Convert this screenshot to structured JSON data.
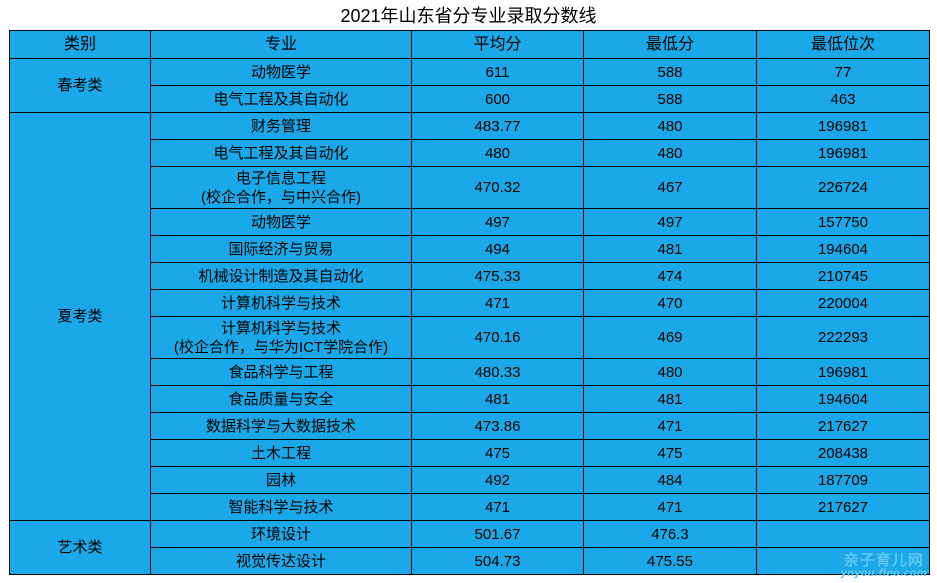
{
  "title": "2021年山东省分专业录取分数线",
  "headers": [
    "类别",
    "专业",
    "平均分",
    "最低分",
    "最低位次"
  ],
  "groups": [
    {
      "category": "春考类",
      "rows": [
        {
          "major": [
            "动物医学"
          ],
          "avg": "611",
          "min": "588",
          "rank": "77"
        },
        {
          "major": [
            "电气工程及其自动化"
          ],
          "avg": "600",
          "min": "588",
          "rank": "463"
        }
      ]
    },
    {
      "category": "夏考类",
      "rows": [
        {
          "major": [
            "财务管理"
          ],
          "avg": "483.77",
          "min": "480",
          "rank": "196981"
        },
        {
          "major": [
            "电气工程及其自动化"
          ],
          "avg": "480",
          "min": "480",
          "rank": "196981"
        },
        {
          "major": [
            "电子信息工程",
            "(校企合作，与中兴合作)"
          ],
          "avg": "470.32",
          "min": "467",
          "rank": "226724"
        },
        {
          "major": [
            "动物医学"
          ],
          "avg": "497",
          "min": "497",
          "rank": "157750"
        },
        {
          "major": [
            "国际经济与贸易"
          ],
          "avg": "494",
          "min": "481",
          "rank": "194604"
        },
        {
          "major": [
            "机械设计制造及其自动化"
          ],
          "avg": "475.33",
          "min": "474",
          "rank": "210745"
        },
        {
          "major": [
            "计算机科学与技术"
          ],
          "avg": "471",
          "min": "470",
          "rank": "220004"
        },
        {
          "major": [
            "计算机科学与技术",
            "(校企合作，与华为ICT学院合作)"
          ],
          "avg": "470.16",
          "min": "469",
          "rank": "222293"
        },
        {
          "major": [
            "食品科学与工程"
          ],
          "avg": "480.33",
          "min": "480",
          "rank": "196981"
        },
        {
          "major": [
            "食品质量与安全"
          ],
          "avg": "481",
          "min": "481",
          "rank": "194604"
        },
        {
          "major": [
            "数据科学与大数据技术"
          ],
          "avg": "473.86",
          "min": "471",
          "rank": "217627"
        },
        {
          "major": [
            "土木工程"
          ],
          "avg": "475",
          "min": "475",
          "rank": "208438"
        },
        {
          "major": [
            "园林"
          ],
          "avg": "492",
          "min": "484",
          "rank": "187709"
        },
        {
          "major": [
            "智能科学与技术"
          ],
          "avg": "471",
          "min": "471",
          "rank": "217627"
        }
      ]
    },
    {
      "category": "艺术类",
      "rows": [
        {
          "major": [
            "环境设计"
          ],
          "avg": "501.67",
          "min": "476.3",
          "rank": ""
        },
        {
          "major": [
            "视觉传达设计"
          ],
          "avg": "504.73",
          "min": "475.55",
          "rank": ""
        }
      ]
    }
  ],
  "watermark": {
    "name": "亲子育儿网",
    "url": "ynyou.fleo.com"
  },
  "colors": {
    "table_fill": "#1ba8e8",
    "grid_line": "#000000",
    "watermark": "#5cc8f2"
  }
}
